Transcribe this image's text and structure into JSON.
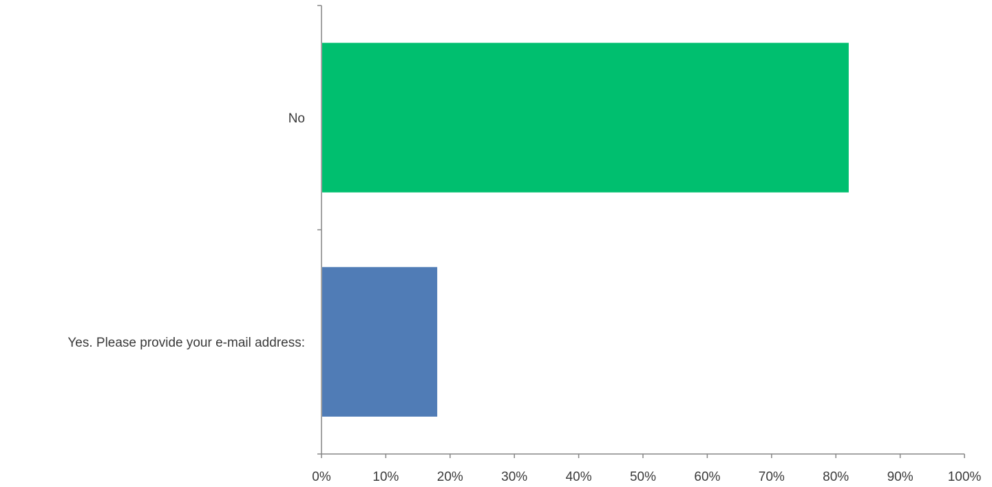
{
  "chart_data": {
    "type": "bar",
    "orientation": "horizontal",
    "categories": [
      "No",
      "Yes. Please provide your e-mail address:"
    ],
    "values": [
      82,
      18
    ],
    "colors": [
      "#00BF6F",
      "#507CB6"
    ],
    "xlim": [
      0,
      100
    ],
    "x_ticks": [
      "0%",
      "10%",
      "20%",
      "30%",
      "40%",
      "50%",
      "60%",
      "70%",
      "80%",
      "90%",
      "100%"
    ],
    "value_unit": "%",
    "grid": false,
    "legend": "none"
  }
}
